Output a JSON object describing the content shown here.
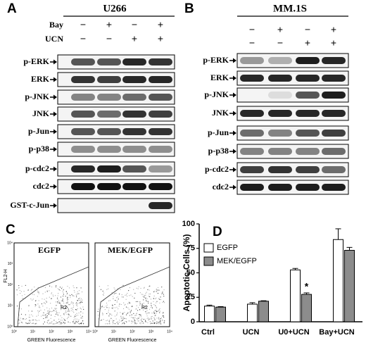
{
  "panels": {
    "A": {
      "letter": "A",
      "title": "U266",
      "conditions": [
        {
          "label": "Bay",
          "signs": [
            "−",
            "+",
            "−",
            "+"
          ]
        },
        {
          "label": "UCN",
          "signs": [
            "−",
            "−",
            "+",
            "+"
          ]
        }
      ],
      "rows": [
        "p-ERK",
        "ERK",
        "p-JNK",
        "JNK",
        "p-Jun",
        "p-p38",
        "p-cdc2",
        "cdc2",
        "GST-c-Jun"
      ]
    },
    "B": {
      "letter": "B",
      "title": "MM.1S",
      "conditions": [
        {
          "signs": [
            "−",
            "+",
            "−",
            "+"
          ]
        },
        {
          "signs": [
            "−",
            "−",
            "+",
            "+"
          ]
        }
      ],
      "rows": [
        "p-ERK",
        "ERK",
        "p-JNK",
        "JNK",
        "p-Jun",
        "p-p38",
        "p-cdc2",
        "cdc2"
      ]
    },
    "C": {
      "letter": "C",
      "y_label": "FL2-H",
      "x_ticks": [
        "10⁰",
        "10¹",
        "10²",
        "10³",
        "10⁴"
      ],
      "y_ticks": [
        "10⁰",
        "10¹",
        "10²",
        "10³",
        "10⁴"
      ],
      "plots": [
        {
          "title": "EGFP",
          "gate": "R2",
          "x_label": "GREEN Fluorescence"
        },
        {
          "title": "MEK/EGFP",
          "gate": "R2",
          "x_label": "GREEN Fluorescence"
        }
      ]
    }
  },
  "chart_data": {
    "type": "bar",
    "panel": "D",
    "ylabel": "Apoptotic Cells (%)",
    "categories": [
      "Ctrl",
      "UCN",
      "U0+UCN",
      "Bay+UCN"
    ],
    "series": [
      {
        "name": "EGFP",
        "color": "#ffffff",
        "values": [
          16,
          18,
          53,
          84
        ],
        "errors": [
          1,
          1.5,
          1.5,
          11
        ]
      },
      {
        "name": "MEK/EGFP",
        "color": "#8c8c8c",
        "values": [
          15,
          21,
          28,
          73
        ],
        "errors": [
          0.5,
          0.5,
          1.5,
          3
        ]
      }
    ],
    "ylim": [
      0,
      100
    ],
    "yticks": [
      0,
      25,
      50,
      75,
      100
    ],
    "annotations": [
      {
        "text": "*",
        "category": "U0+UCN",
        "series": "MEK/EGFP"
      }
    ]
  }
}
